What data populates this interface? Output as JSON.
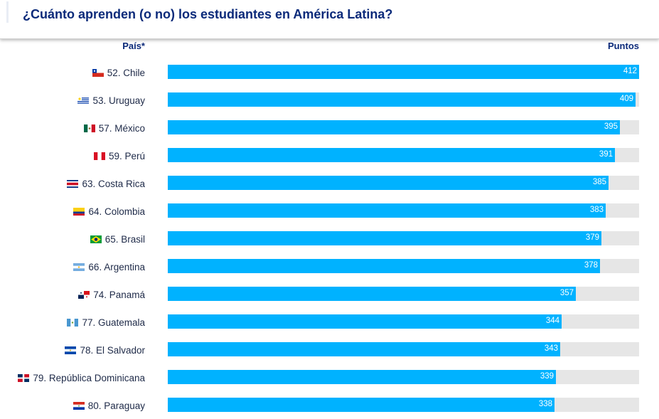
{
  "header": {
    "title": "¿Cuánto aprenden (o no) los estudiantes en América Latina?"
  },
  "columns": {
    "country": "País*",
    "points": "Puntos"
  },
  "colors": {
    "bar": "#00b2ff",
    "track": "#e6e6e6",
    "title": "#0b2a7a"
  },
  "chart_data": {
    "type": "bar",
    "orientation": "horizontal",
    "xlim": [
      0,
      412
    ],
    "categories": [
      "52. Chile",
      "53. Uruguay",
      "57. México",
      "59. Perú",
      "63. Costa Rica",
      "64. Colombia",
      "65. Brasil",
      "66. Argentina",
      "74. Panamá",
      "77. Guatemala",
      "78. El Salvador",
      "79. República Dominicana",
      "80. Paraguay"
    ],
    "values": [
      412,
      409,
      395,
      391,
      385,
      383,
      379,
      378,
      357,
      344,
      343,
      339,
      338
    ],
    "flags": [
      "chile-flag-icon",
      "uruguay-flag-icon",
      "mexico-flag-icon",
      "peru-flag-icon",
      "costa-rica-flag-icon",
      "colombia-flag-icon",
      "brazil-flag-icon",
      "argentina-flag-icon",
      "panama-flag-icon",
      "guatemala-flag-icon",
      "el-salvador-flag-icon",
      "dominican-republic-flag-icon",
      "paraguay-flag-icon"
    ]
  }
}
